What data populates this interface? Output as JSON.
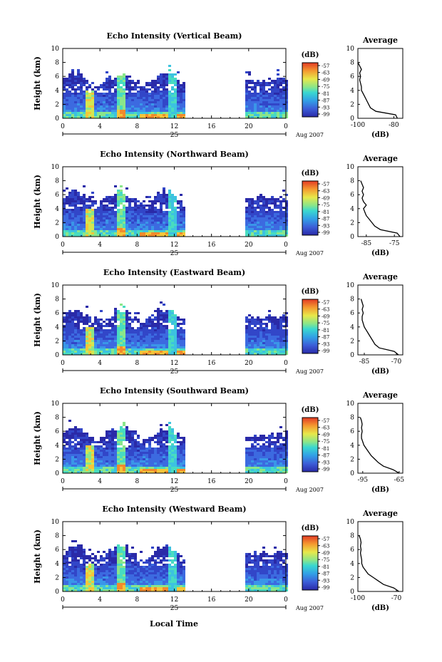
{
  "figure": {
    "xlabel_bottom": "Local Time",
    "date_day": "25",
    "date_label": "Aug 2007",
    "colorbar_unit": "(dB)",
    "colorbar_ticks": [
      "-57",
      "-63",
      "-69",
      "-75",
      "-81",
      "-87",
      "-93",
      "-99"
    ],
    "ylabel": "Height (km)",
    "xticks": [
      "0",
      "4",
      "8",
      "12",
      "16",
      "20",
      "0"
    ],
    "yticks": [
      "0",
      "2",
      "4",
      "6",
      "8",
      "10"
    ],
    "avg_title": "Average",
    "avg_xlabel": "(dB)"
  },
  "chart_data": [
    {
      "type": "heatmap",
      "title": "Echo Intensity (Vertical Beam)",
      "xlabel": "",
      "ylabel": "Height (km)",
      "xlim": [
        0,
        24
      ],
      "ylim": [
        0,
        10
      ],
      "colorbar": {
        "label": "(dB)",
        "ticks": [
          -57,
          -63,
          -69,
          -75,
          -81,
          -87,
          -93,
          -99
        ]
      },
      "data_gap_hours": [
        13,
        19.5
      ],
      "profile": {
        "title": "Average",
        "xlabel": "(dB)",
        "xlim": [
          -100,
          -75
        ],
        "xticks": [
          "-100",
          "-80"
        ],
        "height": [
          0,
          0.5,
          1,
          1.5,
          2,
          2.5,
          3,
          3.5,
          4,
          4.5,
          5,
          5.5,
          6,
          6.5,
          7,
          7.5,
          8
        ],
        "values": [
          -78,
          -79,
          -90,
          -93,
          -94,
          -95,
          -96,
          -97,
          -98,
          -98,
          -98.5,
          -99,
          -98.5,
          -99,
          -98,
          -99,
          -100
        ]
      }
    },
    {
      "type": "heatmap",
      "title": "Echo Intensity (Northward Beam)",
      "xlabel": "",
      "ylabel": "Height (km)",
      "xlim": [
        0,
        24
      ],
      "ylim": [
        0,
        10
      ],
      "colorbar": {
        "label": "(dB)",
        "ticks": [
          -57,
          -63,
          -69,
          -75,
          -81,
          -87,
          -93,
          -99
        ]
      },
      "data_gap_hours": [
        13,
        19.5
      ],
      "profile": {
        "title": "Average",
        "xlabel": "(dB)",
        "xlim": [
          -88,
          -72
        ],
        "xticks": [
          "-85",
          "-75"
        ],
        "height": [
          0,
          0.5,
          1,
          1.5,
          2,
          2.5,
          3,
          3.5,
          4,
          4.5,
          5,
          5.5,
          6,
          6.5,
          7,
          7.5,
          8
        ],
        "values": [
          -73,
          -74,
          -80,
          -82,
          -83,
          -84,
          -85,
          -85.5,
          -86,
          -85,
          -86,
          -86.5,
          -86,
          -86.5,
          -86,
          -86.5,
          -87
        ]
      }
    },
    {
      "type": "heatmap",
      "title": "Echo Intensity (Eastward Beam)",
      "xlabel": "",
      "ylabel": "Height (km)",
      "xlim": [
        0,
        24
      ],
      "ylim": [
        0,
        10
      ],
      "colorbar": {
        "label": "(dB)",
        "ticks": [
          -57,
          -63,
          -69,
          -75,
          -81,
          -87,
          -93,
          -99
        ]
      },
      "data_gap_hours": [
        13,
        19.5
      ],
      "profile": {
        "title": "Average",
        "xlabel": "(dB)",
        "xlim": [
          -88,
          -67
        ],
        "xticks": [
          "-85",
          "-70"
        ],
        "height": [
          0,
          0.5,
          1,
          1.5,
          2,
          2.5,
          3,
          3.5,
          4,
          4.5,
          5,
          5.5,
          6,
          6.5,
          7,
          7.5,
          8
        ],
        "values": [
          -69,
          -71,
          -78,
          -80,
          -81,
          -82,
          -83,
          -84,
          -85,
          -85.5,
          -86,
          -86,
          -85.5,
          -86,
          -85.5,
          -86,
          -86.5
        ]
      }
    },
    {
      "type": "heatmap",
      "title": "Echo Intensity (Southward Beam)",
      "xlabel": "",
      "ylabel": "Height (km)",
      "xlim": [
        0,
        24
      ],
      "ylim": [
        0,
        10
      ],
      "colorbar": {
        "label": "(dB)",
        "ticks": [
          -57,
          -63,
          -69,
          -75,
          -81,
          -87,
          -93,
          -99
        ]
      },
      "data_gap_hours": [
        13,
        19.5
      ],
      "profile": {
        "title": "Average",
        "xlabel": "(dB)",
        "xlim": [
          -99,
          -62
        ],
        "xticks": [
          "-95",
          "-65"
        ],
        "height": [
          0,
          0.5,
          1,
          1.5,
          2,
          2.5,
          3,
          3.5,
          4,
          4.5,
          5,
          5.5,
          6,
          6.5,
          7,
          7.5,
          8
        ],
        "values": [
          -65,
          -70,
          -78,
          -82,
          -85,
          -88,
          -90,
          -92,
          -94,
          -95,
          -96,
          -96,
          -95.5,
          -96,
          -95.5,
          -96,
          -97
        ]
      }
    },
    {
      "type": "heatmap",
      "title": "Echo Intensity (Westward Beam)",
      "xlabel": "Local Time",
      "ylabel": "Height (km)",
      "xlim": [
        0,
        24
      ],
      "ylim": [
        0,
        10
      ],
      "colorbar": {
        "label": "(dB)",
        "ticks": [
          -57,
          -63,
          -69,
          -75,
          -81,
          -87,
          -93,
          -99
        ]
      },
      "data_gap_hours": [
        13,
        19.5
      ],
      "profile": {
        "title": "Average",
        "xlabel": "(dB)",
        "xlim": [
          -100,
          -65
        ],
        "xticks": [
          "-100",
          "-70"
        ],
        "height": [
          0,
          0.5,
          1,
          1.5,
          2,
          2.5,
          3,
          3.5,
          4,
          4.5,
          5,
          5.5,
          6,
          6.5,
          7,
          7.5,
          8
        ],
        "values": [
          -68,
          -72,
          -80,
          -84,
          -88,
          -92,
          -94,
          -96,
          -97,
          -97,
          -97.5,
          -98,
          -97.5,
          -98,
          -97.5,
          -98,
          -99
        ]
      }
    }
  ]
}
